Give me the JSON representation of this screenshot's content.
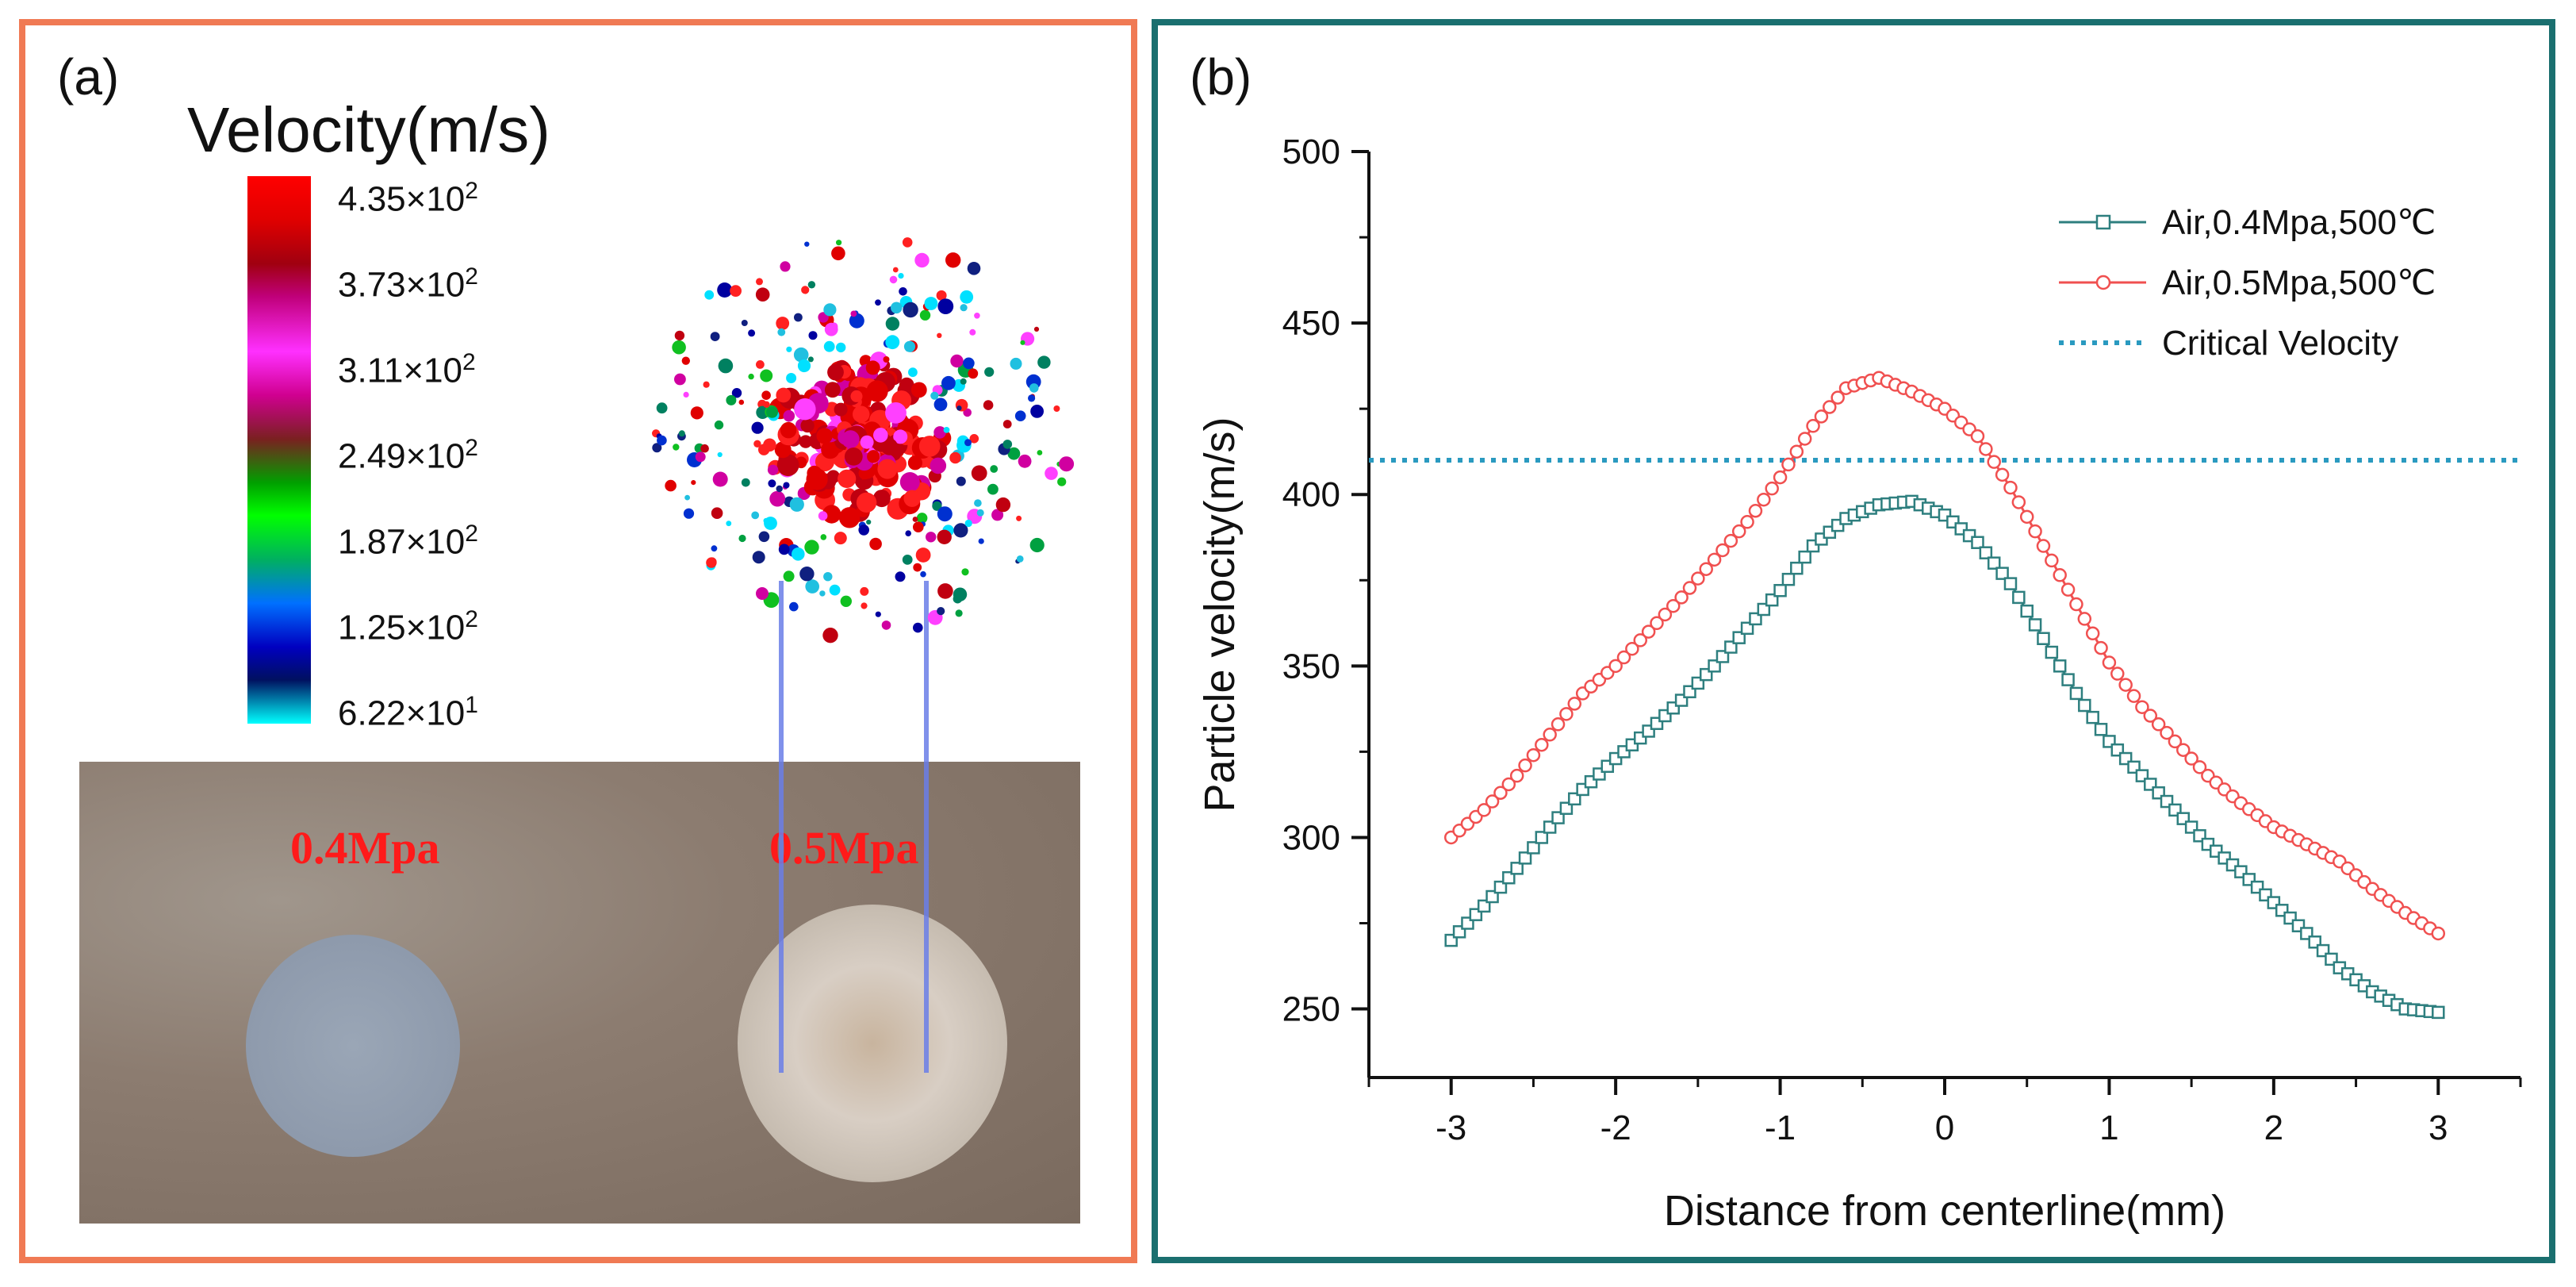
{
  "panel_a": {
    "label": "(a)",
    "legend_title": "Velocity(m/s)",
    "colorbar_ticks": [
      {
        "mantissa": "4.35×10",
        "exponent": "2"
      },
      {
        "mantissa": "3.73×10",
        "exponent": "2"
      },
      {
        "mantissa": "3.11×10",
        "exponent": "2"
      },
      {
        "mantissa": "2.49×10",
        "exponent": "2"
      },
      {
        "mantissa": "1.87×10",
        "exponent": "2"
      },
      {
        "mantissa": "1.25×10",
        "exponent": "2"
      },
      {
        "mantissa": "6.22×10",
        "exponent": "1"
      }
    ],
    "photo_labels": {
      "left": "0.4Mpa",
      "right": "0.5Mpa"
    }
  },
  "colors": {
    "panel_a_border": "#f07a54",
    "panel_b_border": "#1a6f6f",
    "series_04": "#2e7f7f",
    "series_05": "#f05050",
    "critical": "#2a9ac0"
  },
  "chart_data": {
    "type": "line",
    "panel_label": "(b)",
    "xlabel": "Distance from centerline(mm)",
    "ylabel": "Particle velocity(m/s)",
    "xlim": [
      -3.5,
      3.5
    ],
    "ylim": [
      230,
      500
    ],
    "xticks": [
      -3,
      -2,
      -1,
      0,
      1,
      2,
      3
    ],
    "yticks": [
      250,
      300,
      350,
      400,
      450,
      500
    ],
    "x": [
      -3.0,
      -2.8,
      -2.6,
      -2.4,
      -2.2,
      -2.0,
      -1.8,
      -1.6,
      -1.4,
      -1.2,
      -1.0,
      -0.8,
      -0.6,
      -0.4,
      -0.2,
      0.0,
      0.2,
      0.4,
      0.6,
      0.8,
      1.0,
      1.2,
      1.4,
      1.6,
      1.8,
      2.0,
      2.2,
      2.4,
      2.6,
      2.8,
      3.0
    ],
    "series": [
      {
        "name": "Air,0.4Mpa,500℃",
        "marker": "square",
        "values": [
          270,
          280,
          291,
          303,
          314,
          323,
          331,
          340,
          350,
          361,
          372,
          385,
          393,
          397,
          398,
          394,
          386,
          374,
          358,
          342,
          328,
          318,
          308,
          298,
          290,
          281,
          272,
          262,
          255,
          250,
          249
        ]
      },
      {
        "name": "Air,0.5Mpa,500℃",
        "marker": "circle",
        "values": [
          300,
          308,
          318,
          330,
          342,
          350,
          360,
          370,
          381,
          392,
          405,
          420,
          431,
          434,
          430,
          425,
          417,
          402,
          385,
          368,
          351,
          338,
          328,
          318,
          310,
          303,
          298,
          293,
          285,
          278,
          272
        ]
      },
      {
        "name": "Critical Velocity",
        "style": "dotted",
        "constant": 410
      }
    ]
  }
}
